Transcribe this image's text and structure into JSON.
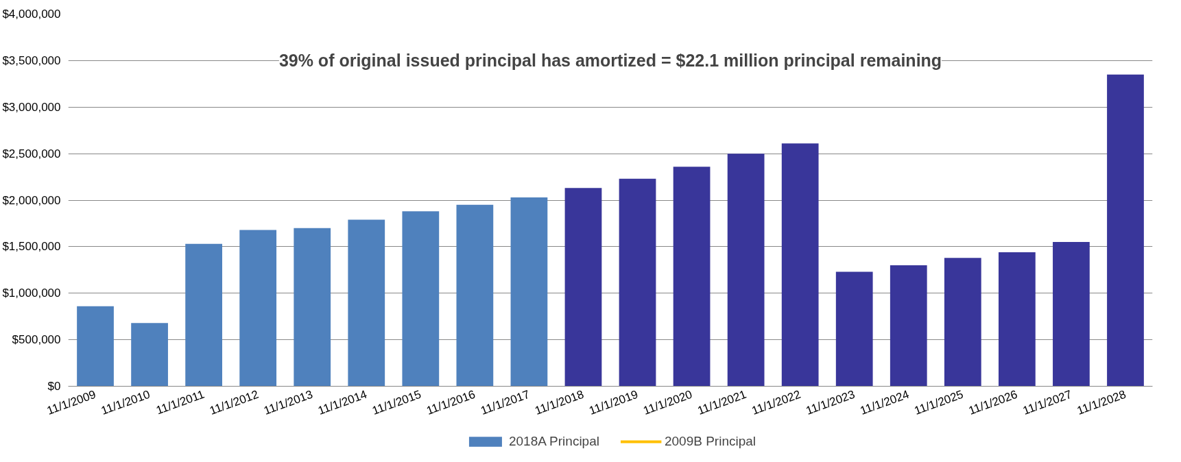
{
  "chart_data": {
    "type": "bar",
    "categories": [
      "11/1/2009",
      "11/1/2010",
      "11/1/2011",
      "11/1/2012",
      "11/1/2013",
      "11/1/2014",
      "11/1/2015",
      "11/1/2016",
      "11/1/2017",
      "11/1/2018",
      "11/1/2019",
      "11/1/2020",
      "11/1/2021",
      "11/1/2022",
      "11/1/2023",
      "11/1/2024",
      "11/1/2025",
      "11/1/2026",
      "11/1/2027",
      "11/1/2028"
    ],
    "series": [
      {
        "name": "2018A Principal",
        "color": "#4f81bd",
        "colors": [
          "#4f81bd",
          "#4f81bd",
          "#4f81bd",
          "#4f81bd",
          "#4f81bd",
          "#4f81bd",
          "#4f81bd",
          "#4f81bd",
          "#4f81bd",
          "#39369a",
          "#39369a",
          "#39369a",
          "#39369a",
          "#39369a",
          "#39369a",
          "#39369a",
          "#39369a",
          "#39369a",
          "#39369a",
          "#39369a"
        ],
        "values": [
          860000,
          680000,
          1530000,
          1680000,
          1700000,
          1790000,
          1880000,
          1950000,
          2030000,
          2130000,
          2230000,
          2360000,
          2500000,
          2610000,
          1230000,
          1300000,
          1380000,
          1440000,
          1550000,
          3350000
        ]
      },
      {
        "name": "2009B Principal",
        "type": "line",
        "color": "#ffc000",
        "values": [
          null,
          null,
          null,
          null,
          null,
          null,
          null,
          null,
          null,
          null,
          null,
          null,
          null,
          null,
          null,
          null,
          null,
          null,
          null,
          null
        ]
      }
    ],
    "ylim": [
      0,
      4000000
    ],
    "yticks": [
      {
        "value": 0,
        "label": "$0"
      },
      {
        "value": 500000,
        "label": "$500,000"
      },
      {
        "value": 1000000,
        "label": "$1,000,000"
      },
      {
        "value": 1500000,
        "label": "$1,500,000"
      },
      {
        "value": 2000000,
        "label": "$2,000,000"
      },
      {
        "value": 2500000,
        "label": "$2,500,000"
      },
      {
        "value": 3000000,
        "label": "$3,000,000"
      },
      {
        "value": 3500000,
        "label": "$3,500,000"
      },
      {
        "value": 4000000,
        "label": "$4,000,000"
      }
    ],
    "grid": "y",
    "legend": "bottom",
    "annotations": [
      "39% of original issued principal has amortized = $22.1 million principal remaining"
    ]
  }
}
